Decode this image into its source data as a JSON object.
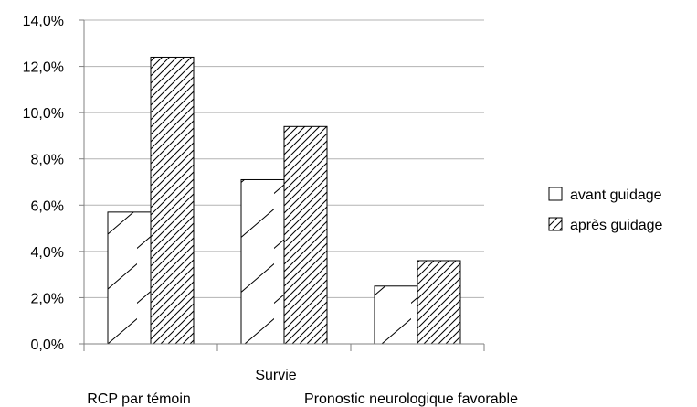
{
  "chart_data": {
    "type": "bar",
    "categories": [
      "RCP par témoin",
      "Survie",
      "Pronostic neurologique favorable"
    ],
    "series": [
      {
        "name": "avant guidage",
        "values": [
          5.7,
          7.1,
          2.5
        ],
        "pattern": "sparse-hatch"
      },
      {
        "name": "après guidage",
        "values": [
          12.4,
          9.4,
          3.6
        ],
        "pattern": "dense-hatch"
      }
    ],
    "ylim": [
      0,
      14
    ],
    "yticks": [
      "0,0%",
      "2,0%",
      "4,0%",
      "6,0%",
      "8,0%",
      "10,0%",
      "12,0%",
      "14,0%"
    ],
    "grid": true,
    "legend_position": "right",
    "colors": {
      "bar_fill": "#ffffff",
      "bar_stroke": "#000000",
      "grid": "#b3b3b3",
      "axis": "#808080"
    }
  }
}
